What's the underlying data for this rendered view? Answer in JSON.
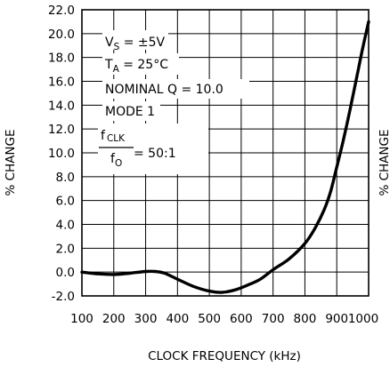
{
  "chart_data": {
    "type": "line",
    "title": "",
    "xlabel": "CLOCK FREQUENCY (kHz)",
    "ylabel": "% CHANGE",
    "ylabel_right": "% CHANGE",
    "xlim": [
      100,
      1000
    ],
    "ylim": [
      -2.0,
      22.0
    ],
    "grid": true,
    "xticks": [
      "100",
      "200",
      "300",
      "400",
      "500",
      "600",
      "700",
      "800",
      "900",
      "1000"
    ],
    "yticks": [
      "-2.0",
      "0.0",
      "2.0",
      "4.0",
      "6.0",
      "8.0",
      "10.0",
      "12.0",
      "14.0",
      "16.0",
      "18.0",
      "20.0",
      "22.0"
    ],
    "series": [
      {
        "x": [
          100,
          150,
          200,
          250,
          300,
          330,
          360,
          400,
          450,
          500,
          540,
          580,
          620,
          660,
          700,
          750,
          800,
          830,
          860,
          880,
          900,
          920,
          940,
          960,
          980,
          1000
        ],
        "y": [
          0.0,
          -0.15,
          -0.2,
          -0.1,
          0.05,
          0.05,
          -0.1,
          -0.6,
          -1.2,
          -1.6,
          -1.7,
          -1.5,
          -1.1,
          -0.6,
          0.2,
          1.1,
          2.4,
          3.6,
          5.2,
          6.7,
          8.8,
          11.0,
          13.4,
          16.0,
          18.6,
          21.0
        ]
      }
    ],
    "annotations": {
      "vs_main": "V",
      "vs_sub": "S",
      "vs_rest": " = ±5V",
      "ta_main": "T",
      "ta_sub": "A",
      "ta_rest": " = 25°C",
      "nominal_q": "NOMINAL  Q = 10.0",
      "mode": "MODE  1",
      "ratio_num_main": "f",
      "ratio_num_sub": "CLK",
      "ratio_den_main": "f",
      "ratio_den_sub": "O",
      "ratio_value": " = 50:1"
    }
  }
}
